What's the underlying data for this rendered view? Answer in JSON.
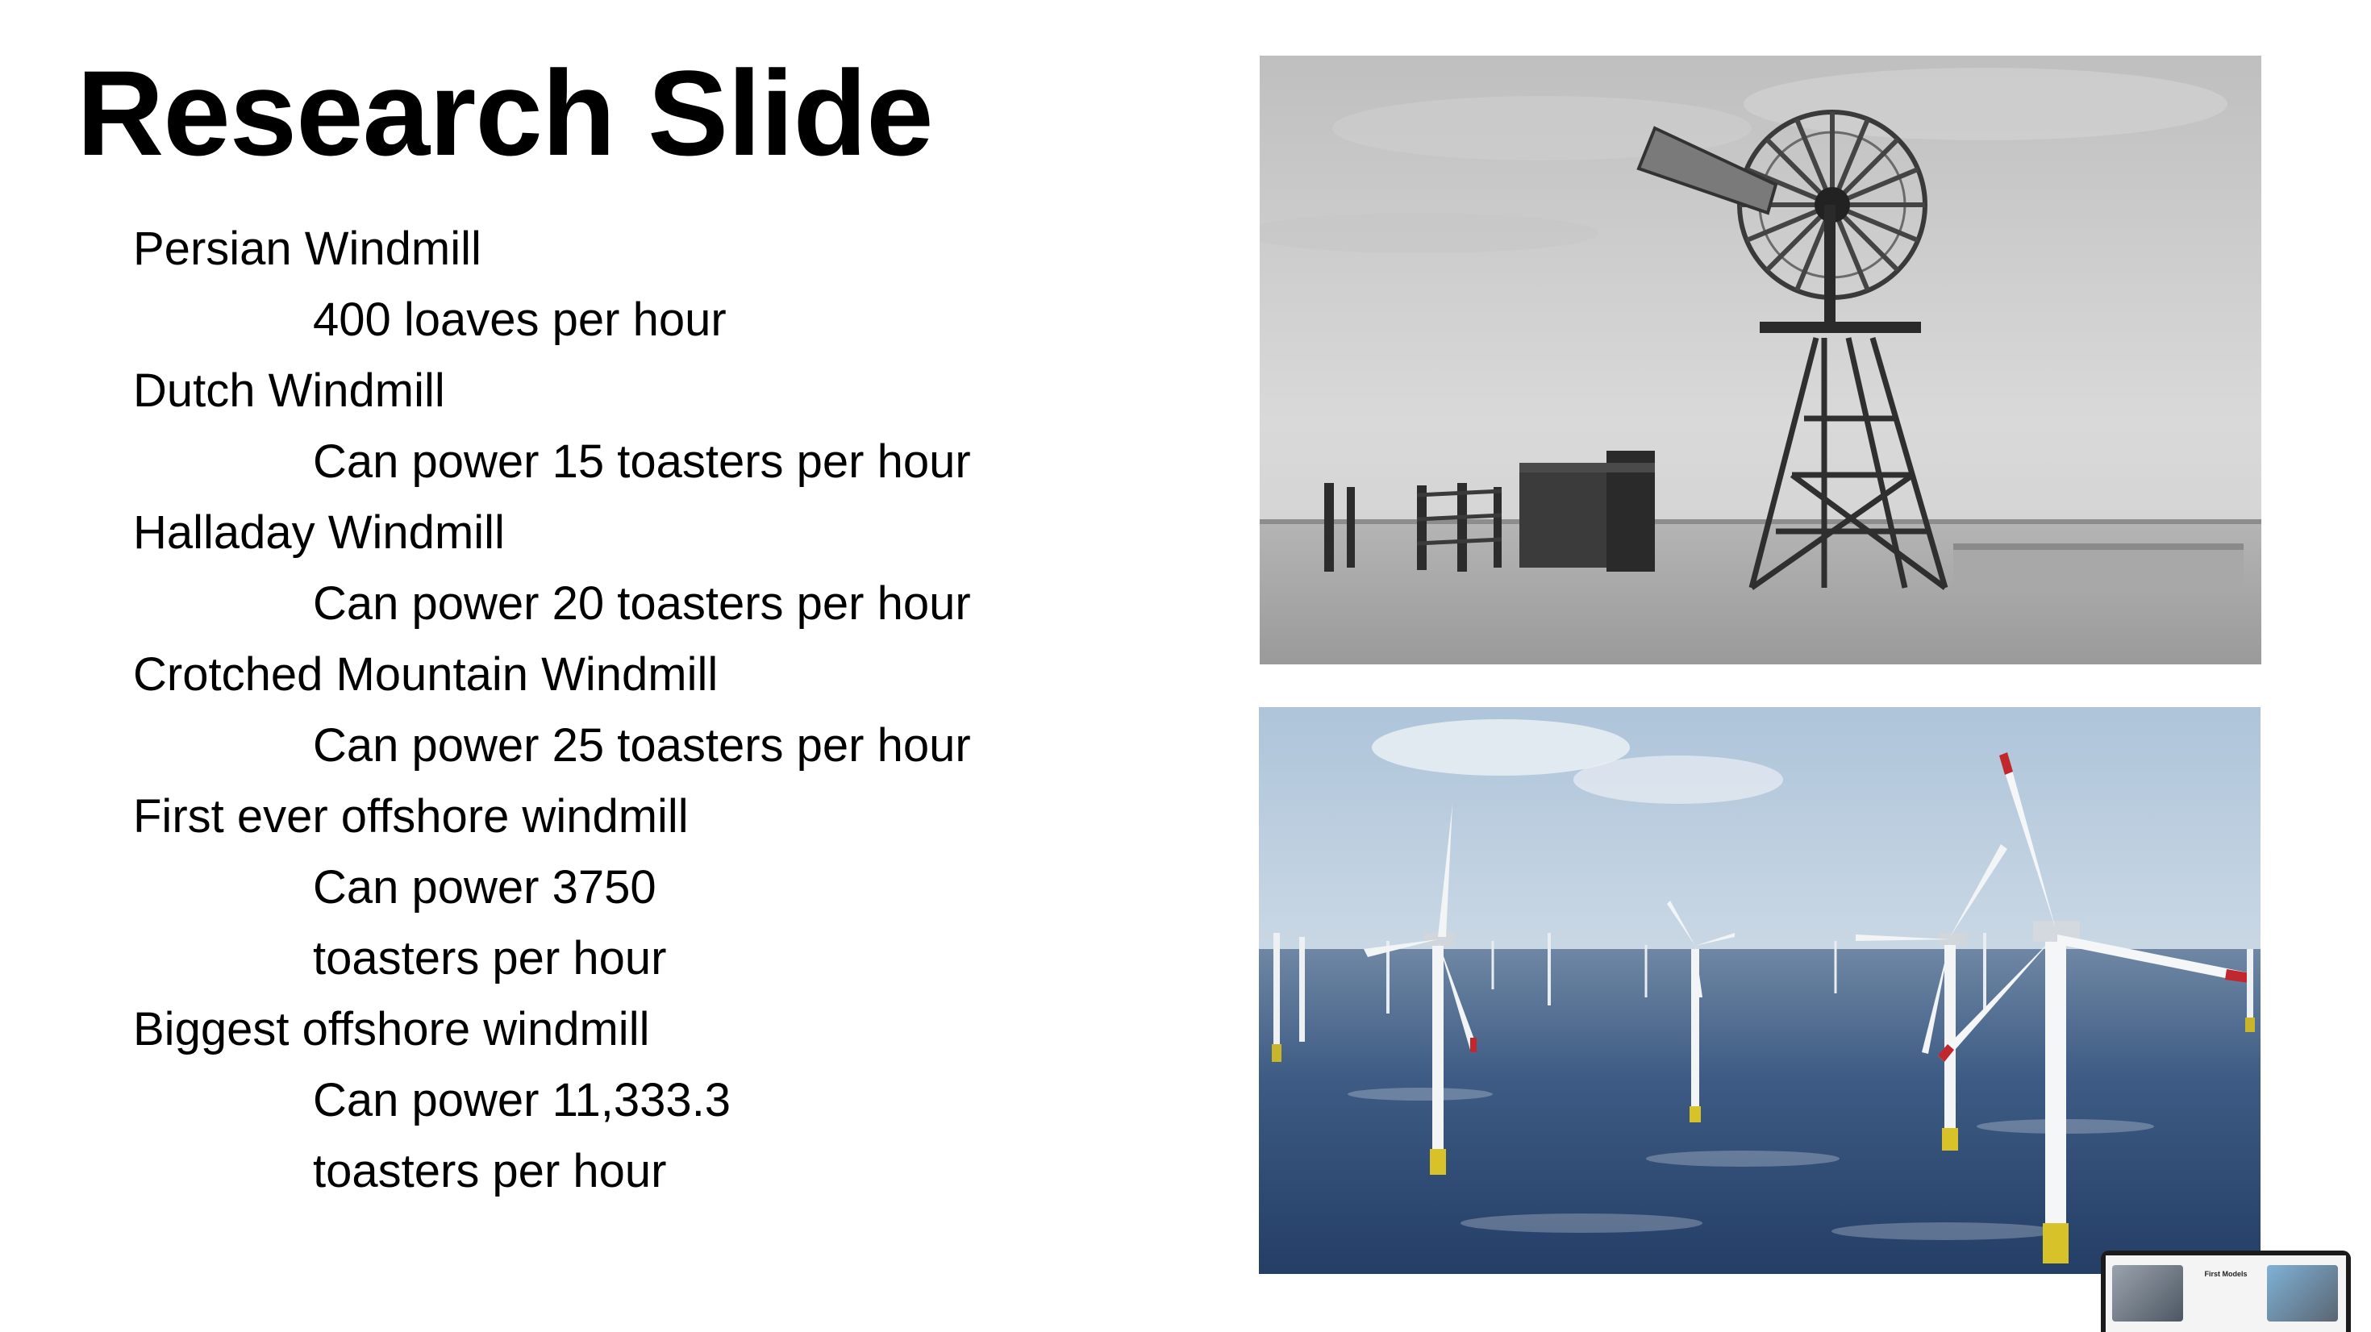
{
  "slide": {
    "title": "Research Slide",
    "bullets": [
      {
        "label": "Persian Windmill",
        "detail": "400 loaves per hour"
      },
      {
        "label": "Dutch Windmill",
        "detail": "Can power 15 toasters per hour"
      },
      {
        "label": "Halladay Windmill",
        "detail": "Can power 20 toasters per hour"
      },
      {
        "label": "Crotched Mountain Windmill",
        "detail": "Can power 25 toasters per hour"
      },
      {
        "label": "First ever offshore windmill",
        "detail": "Can power 3750 toasters per hour"
      },
      {
        "label": "Biggest offshore windmill",
        "detail": "Can power 11,333.3 toasters per hour"
      }
    ]
  },
  "images": {
    "top": "old-windmill-photo",
    "bottom": "offshore-wind-farm-photo"
  },
  "thumbnail": {
    "title": "First Models"
  },
  "colors": {
    "sky": "#c9d8e6",
    "sea": "#2f4f78",
    "turbine": "#f2f4f6",
    "blade_tip": "#c0282d",
    "foundation": "#d7c22a"
  }
}
